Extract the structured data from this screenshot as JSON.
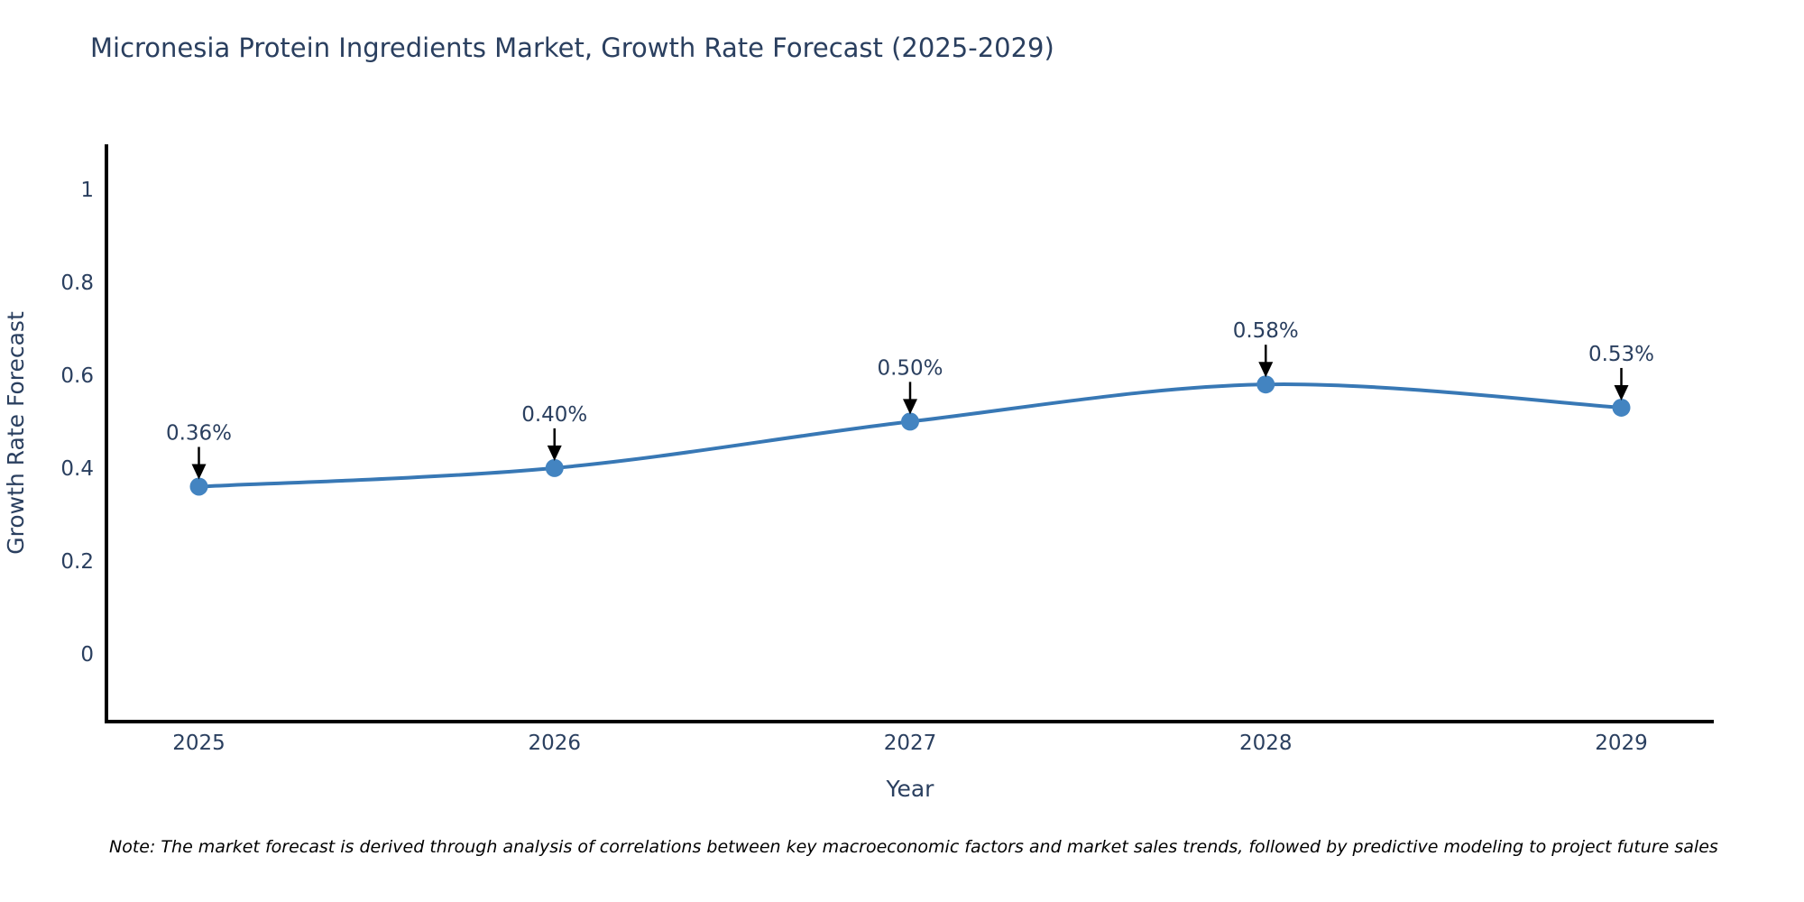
{
  "title": "Micronesia Protein Ingredients Market, Growth Rate Forecast (2025-2029)",
  "note": "Note: The market forecast is derived through analysis of correlations between key macroeconomic factors and market sales trends, followed by predictive modeling to project future sales",
  "chart_data": {
    "type": "line",
    "title": "Micronesia Protein Ingredients Market, Growth Rate Forecast (2025-2029)",
    "xlabel": "Year",
    "ylabel": "Growth Rate Forecast",
    "x": [
      2025,
      2026,
      2027,
      2028,
      2029
    ],
    "y": [
      0.36,
      0.4,
      0.5,
      0.58,
      0.53
    ],
    "data_labels": [
      "0.36%",
      "0.40%",
      "0.50%",
      "0.58%",
      "0.53%"
    ],
    "x_ticks": [
      "2025",
      "2026",
      "2027",
      "2028",
      "2029"
    ],
    "y_ticks": [
      "0",
      "0.2",
      "0.4",
      "0.6",
      "0.8",
      "1"
    ],
    "y_tick_values": [
      0,
      0.2,
      0.4,
      0.6,
      0.8,
      1
    ],
    "xlim": [
      2024.74,
      2029.26
    ],
    "ylim": [
      -0.146,
      1.097
    ],
    "line_shape": "spline",
    "grid": false,
    "legend": "none",
    "colors": {
      "line": "#3878b5",
      "marker": "#4384c1",
      "axis": "#000000",
      "text": "#2a3f5f",
      "annotation_arrow": "#000000",
      "note_text": "#000000",
      "background": "#ffffff"
    }
  }
}
